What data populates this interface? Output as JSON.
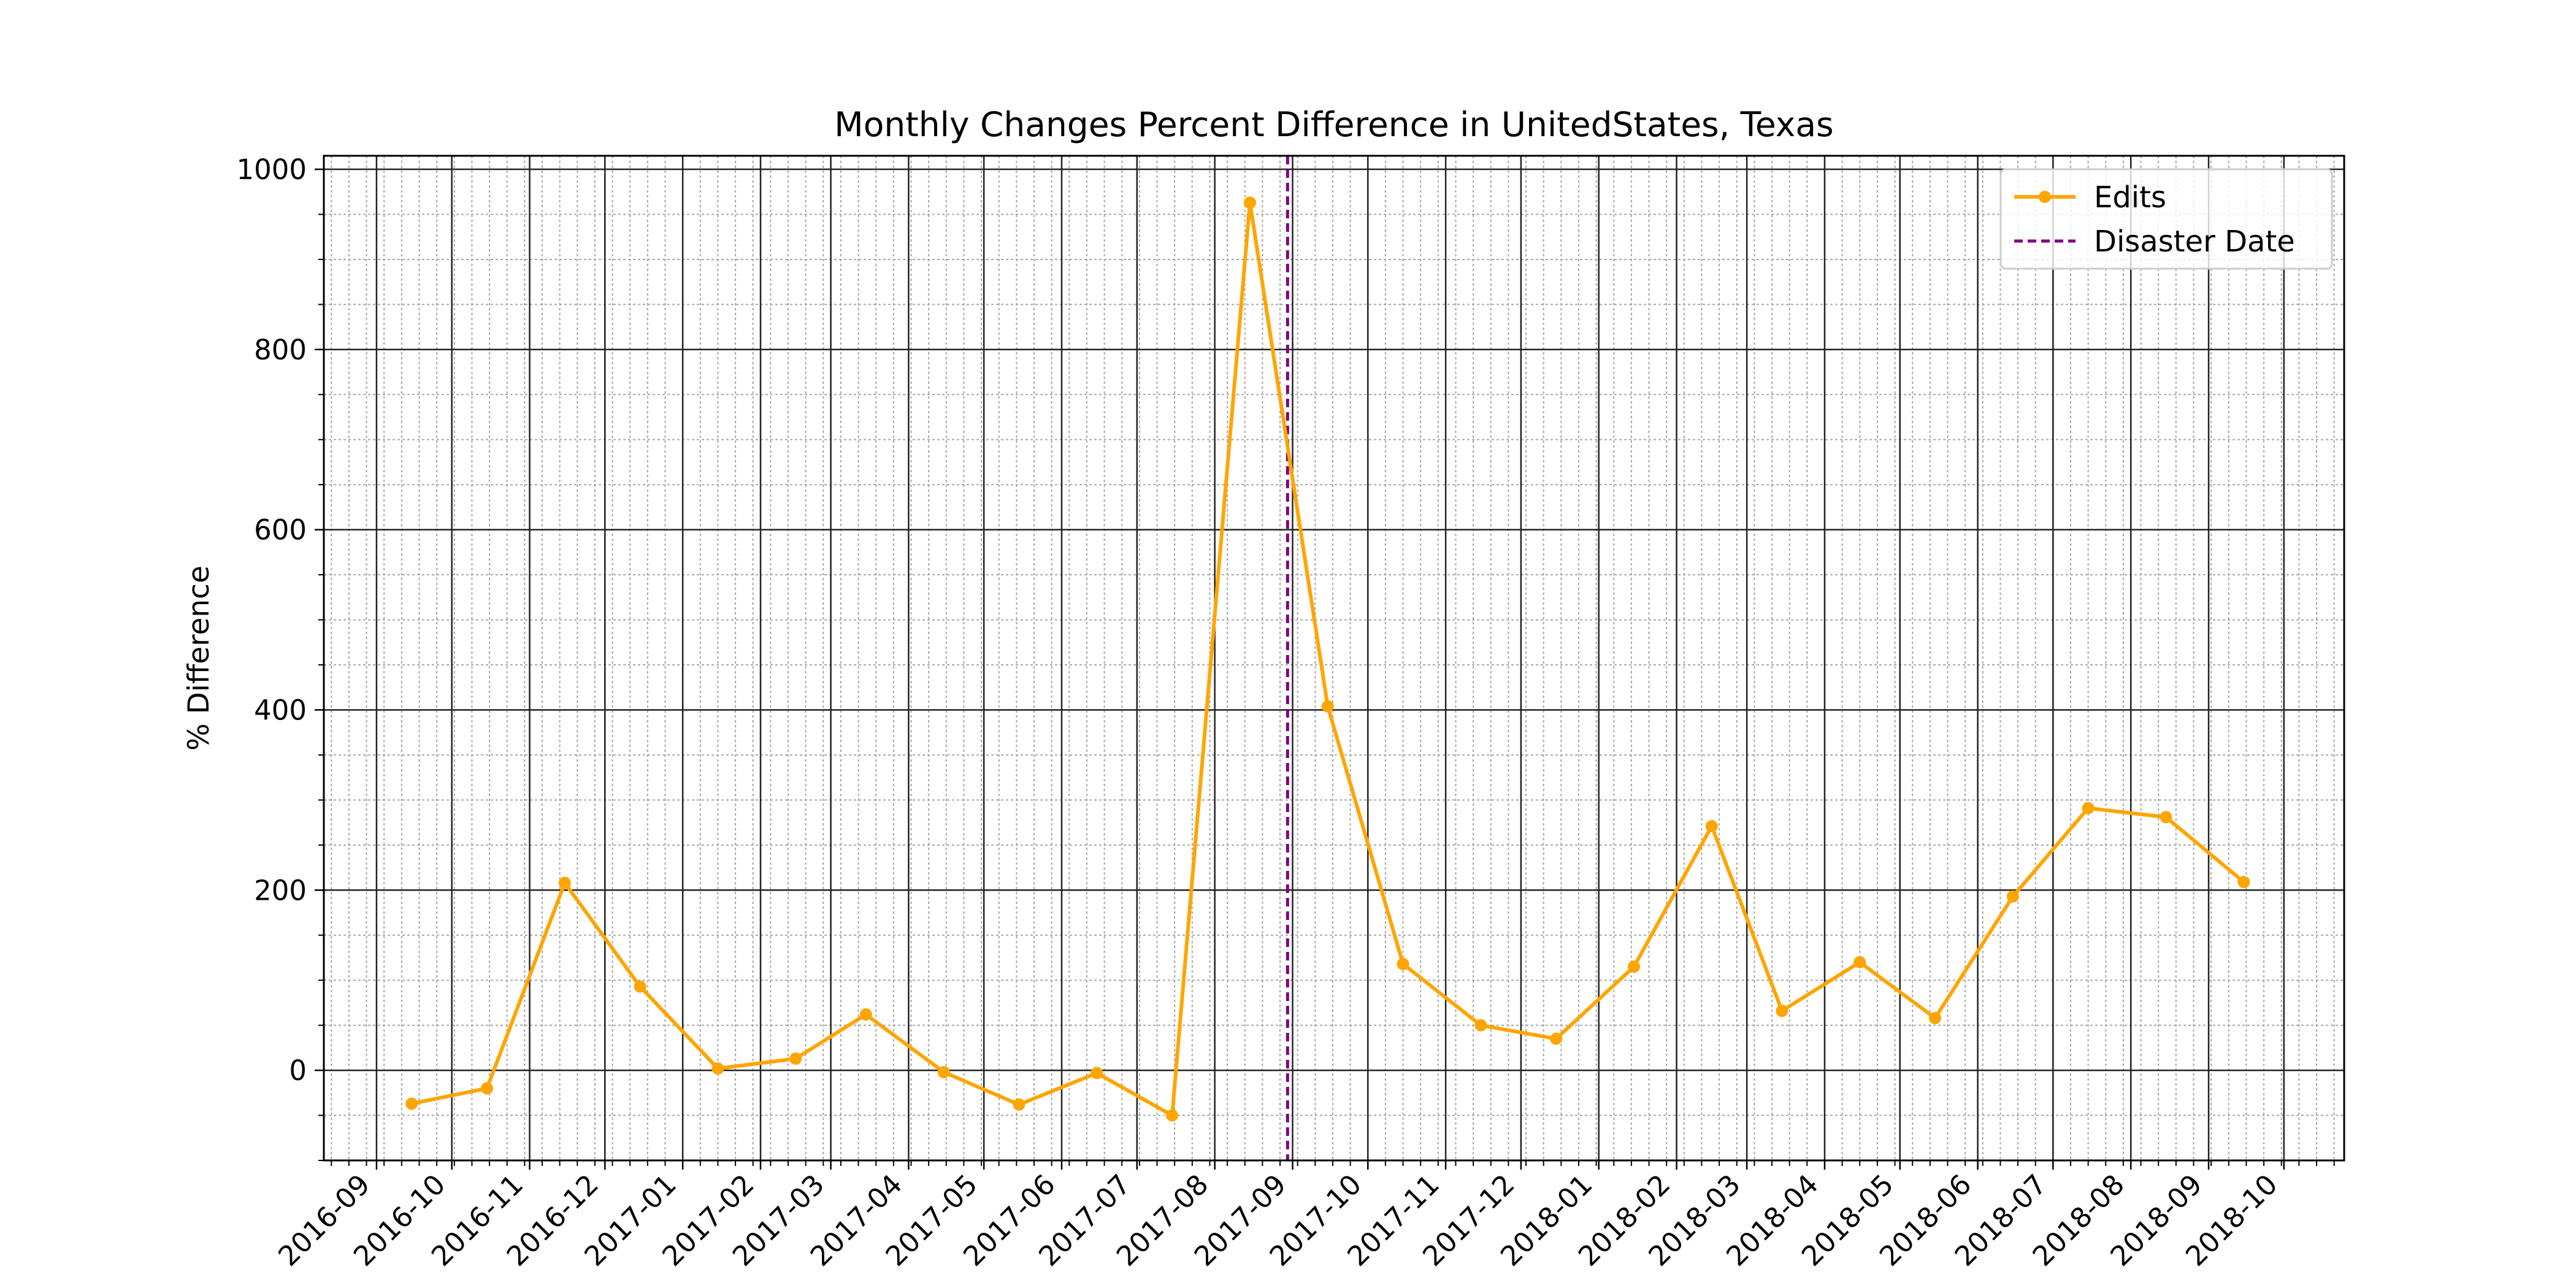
{
  "chart_data": {
    "type": "line",
    "title": "Monthly Changes Percent Difference in UnitedStates, Texas",
    "xlabel": "",
    "ylabel": "% Difference",
    "x_tick_labels": [
      "2016-09",
      "2016-10",
      "2016-11",
      "2016-12",
      "2017-01",
      "2017-02",
      "2017-03",
      "2017-04",
      "2017-05",
      "2017-06",
      "2017-07",
      "2017-08",
      "2017-09",
      "2017-10",
      "2017-11",
      "2017-12",
      "2018-01",
      "2018-02",
      "2018-03",
      "2018-04",
      "2018-05",
      "2018-06",
      "2018-07",
      "2018-08",
      "2018-09",
      "2018-10"
    ],
    "xlim": [
      "2016-08-11",
      "2018-10-25"
    ],
    "ylim": [
      -100,
      1015
    ],
    "y_ticks": [
      0,
      200,
      400,
      600,
      800,
      1000
    ],
    "grid": true,
    "legend_position": "top-right",
    "series": [
      {
        "name": "Edits",
        "color": "#FFA500",
        "marker": "circle",
        "x": [
          "2016-09-15",
          "2016-10-15",
          "2016-11-15",
          "2016-12-15",
          "2017-01-15",
          "2017-02-15",
          "2017-03-15",
          "2017-04-15",
          "2017-05-15",
          "2017-06-15",
          "2017-07-15",
          "2017-08-15",
          "2017-09-15",
          "2017-10-15",
          "2017-11-15",
          "2017-12-15",
          "2018-01-15",
          "2018-02-15",
          "2018-03-15",
          "2018-04-15",
          "2018-05-15",
          "2018-06-15",
          "2018-07-15",
          "2018-08-15",
          "2018-09-15"
        ],
        "y": [
          -37,
          -20,
          208,
          93,
          2,
          13,
          62,
          -2,
          -38,
          -3,
          -50,
          963,
          404,
          118,
          50,
          35,
          115,
          271,
          66,
          120,
          58,
          193,
          291,
          281,
          209
        ]
      }
    ],
    "vlines": [
      {
        "name": "Disaster Date",
        "x": "2017-08-30",
        "color": "#800080",
        "style": "dashed"
      }
    ]
  }
}
